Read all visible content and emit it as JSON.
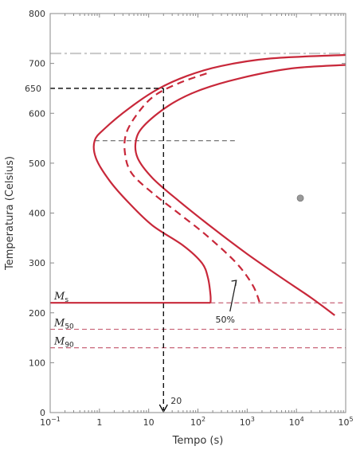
{
  "chart_data": {
    "type": "line",
    "xscale": "log",
    "xlabel": "Tempo (s)",
    "ylabel": "Temperatura (Celsius)",
    "xlim": [
      0.1,
      100000
    ],
    "ylim": [
      0,
      800
    ],
    "x_ticks": [
      {
        "value": 0.1,
        "base": "10",
        "exp": "−1"
      },
      {
        "value": 1,
        "base": "1",
        "exp": ""
      },
      {
        "value": 10,
        "base": "10",
        "exp": ""
      },
      {
        "value": 100,
        "base": "10",
        "exp": "2"
      },
      {
        "value": 1000,
        "base": "10",
        "exp": "3"
      },
      {
        "value": 10000,
        "base": "10",
        "exp": "4"
      },
      {
        "value": 100000,
        "base": "10",
        "exp": "5"
      }
    ],
    "y_ticks": [
      0,
      100,
      200,
      300,
      400,
      500,
      600,
      700,
      800
    ],
    "colors": {
      "curve": "#c8283a",
      "dashed_curve": "#c8283a",
      "reference": "#000000",
      "gray_line": "#666666"
    },
    "curves": [
      {
        "style": "solid",
        "points": [
          [
            100000,
            717
          ],
          [
            3000,
            710
          ],
          [
            300,
            695
          ],
          [
            60,
            675
          ],
          [
            15,
            648
          ],
          [
            4,
            610
          ],
          [
            1.3,
            570
          ],
          [
            0.8,
            545
          ],
          [
            0.85,
            510
          ],
          [
            1.6,
            465
          ],
          [
            4,
            420
          ],
          [
            12,
            375
          ],
          [
            50,
            335
          ],
          [
            120,
            300
          ],
          [
            160,
            270
          ],
          [
            180,
            235
          ],
          [
            180,
            220
          ]
        ]
      },
      {
        "style": "dashed",
        "points": [
          [
            150,
            680
          ],
          [
            40,
            660
          ],
          [
            13,
            635
          ],
          [
            6,
            600
          ],
          [
            3.5,
            560
          ],
          [
            3.3,
            520
          ],
          [
            4.5,
            480
          ],
          [
            12,
            440
          ],
          [
            40,
            400
          ],
          [
            150,
            355
          ],
          [
            600,
            300
          ],
          [
            1300,
            255
          ],
          [
            1800,
            220
          ]
        ]
      },
      {
        "style": "solid",
        "points": [
          [
            100000,
            697
          ],
          [
            8000,
            690
          ],
          [
            700,
            670
          ],
          [
            100,
            645
          ],
          [
            25,
            615
          ],
          [
            8,
            575
          ],
          [
            5.5,
            545
          ],
          [
            6,
            510
          ],
          [
            12,
            470
          ],
          [
            40,
            425
          ],
          [
            200,
            370
          ],
          [
            1000,
            318
          ],
          [
            5000,
            270
          ],
          [
            20000,
            230
          ],
          [
            60000,
            195
          ]
        ]
      },
      {
        "style": "solid",
        "points": [
          [
            0.1,
            220
          ],
          [
            180,
            220
          ]
        ]
      }
    ],
    "horizontal_dashed": [
      {
        "y": 720,
        "label": "",
        "color": "#c8c8c8",
        "from": 0.1,
        "to": 100000
      },
      {
        "y": 545,
        "label": "",
        "color": "#666666",
        "from": 0.8,
        "to": 600
      },
      {
        "y": 220,
        "label": "M_s",
        "base": "M",
        "sub": "s",
        "color": "#c86478",
        "from": 180,
        "to": 100000
      },
      {
        "y": 167,
        "label": "M50",
        "base": "M",
        "sub": "50",
        "color": "#c86478",
        "from": 0.1,
        "to": 100000
      },
      {
        "y": 130,
        "label": "M90",
        "base": "M",
        "sub": "90",
        "color": "#c86478",
        "from": 0.1,
        "to": 100000
      }
    ],
    "reference_lines": {
      "y_value": 650,
      "y_label": "650",
      "x_value": 20,
      "x_label": "20"
    },
    "annotations": [
      {
        "text": "50%",
        "x": 650,
        "y": 190
      }
    ],
    "marker": {
      "x": 12000,
      "y": 430
    }
  }
}
